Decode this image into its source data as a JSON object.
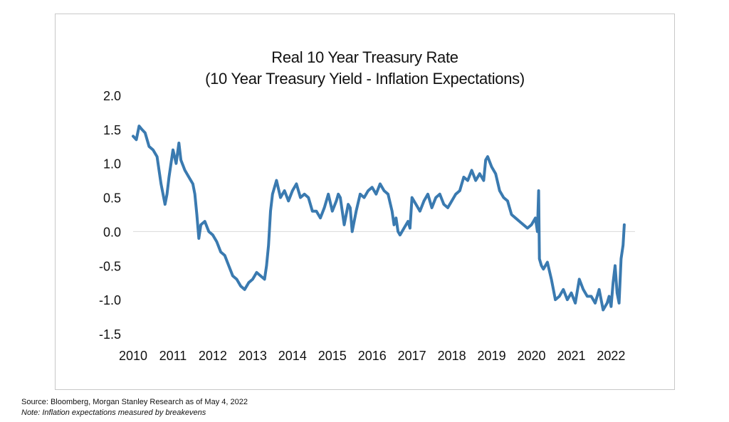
{
  "chart_data": {
    "type": "line",
    "title": "Real 10 Year Treasury Rate",
    "subtitle": "(10 Year Treasury Yield - Inflation Expectations)",
    "xlabel": "",
    "ylabel": "",
    "x_tick_labels": [
      "2010",
      "2011",
      "2012",
      "2013",
      "2014",
      "2015",
      "2016",
      "2017",
      "2018",
      "2019",
      "2020",
      "2021",
      "2022"
    ],
    "y_tick_labels": [
      "2.0",
      "1.5",
      "1.0",
      "0.5",
      "0.0",
      "-0.5",
      "-1.0",
      "-1.5"
    ],
    "y_ticks": [
      2.0,
      1.5,
      1.0,
      0.5,
      0.0,
      -0.5,
      -1.0,
      -1.5
    ],
    "xlim": [
      2010.0,
      2022.6
    ],
    "ylim": [
      -1.5,
      2.0
    ],
    "grid": false,
    "zero_line": true,
    "series_color": "#3a7ab0",
    "series": [
      {
        "x": [
          2010.0,
          2010.08,
          2010.15,
          2010.22,
          2010.3,
          2010.4,
          2010.5,
          2010.6,
          2010.7,
          2010.8,
          2010.85,
          2010.9,
          2011.0,
          2011.08,
          2011.15,
          2011.2,
          2011.3,
          2011.4,
          2011.5,
          2011.55,
          2011.6,
          2011.65,
          2011.7,
          2011.8,
          2011.9,
          2012.0,
          2012.1,
          2012.2,
          2012.3,
          2012.4,
          2012.5,
          2012.6,
          2012.7,
          2012.8,
          2012.9,
          2013.0,
          2013.1,
          2013.2,
          2013.3,
          2013.35,
          2013.4,
          2013.45,
          2013.5,
          2013.55,
          2013.6,
          2013.7,
          2013.8,
          2013.9,
          2014.0,
          2014.1,
          2014.2,
          2014.3,
          2014.4,
          2014.5,
          2014.6,
          2014.7,
          2014.8,
          2014.9,
          2015.0,
          2015.1,
          2015.15,
          2015.2,
          2015.3,
          2015.4,
          2015.45,
          2015.5,
          2015.6,
          2015.7,
          2015.8,
          2015.9,
          2016.0,
          2016.1,
          2016.2,
          2016.3,
          2016.4,
          2016.5,
          2016.55,
          2016.6,
          2016.65,
          2016.7,
          2016.8,
          2016.9,
          2016.95,
          2017.0,
          2017.1,
          2017.2,
          2017.3,
          2017.4,
          2017.5,
          2017.6,
          2017.7,
          2017.8,
          2017.9,
          2018.0,
          2018.1,
          2018.2,
          2018.3,
          2018.4,
          2018.5,
          2018.6,
          2018.7,
          2018.8,
          2018.85,
          2018.9,
          2019.0,
          2019.1,
          2019.2,
          2019.3,
          2019.4,
          2019.5,
          2019.6,
          2019.7,
          2019.8,
          2019.9,
          2020.0,
          2020.1,
          2020.15,
          2020.18,
          2020.2,
          2020.25,
          2020.3,
          2020.4,
          2020.5,
          2020.6,
          2020.7,
          2020.8,
          2020.9,
          2021.0,
          2021.1,
          2021.2,
          2021.3,
          2021.4,
          2021.5,
          2021.6,
          2021.7,
          2021.8,
          2021.9,
          2021.95,
          2022.0,
          2022.05,
          2022.1,
          2022.15,
          2022.2,
          2022.25,
          2022.3,
          2022.33
        ],
        "y": [
          1.4,
          1.35,
          1.55,
          1.5,
          1.45,
          1.25,
          1.2,
          1.1,
          0.7,
          0.4,
          0.55,
          0.8,
          1.2,
          1.0,
          1.3,
          1.05,
          0.9,
          0.8,
          0.7,
          0.55,
          0.25,
          -0.1,
          0.1,
          0.15,
          0.0,
          -0.05,
          -0.15,
          -0.3,
          -0.35,
          -0.5,
          -0.65,
          -0.7,
          -0.8,
          -0.85,
          -0.75,
          -0.7,
          -0.6,
          -0.65,
          -0.7,
          -0.5,
          -0.2,
          0.3,
          0.55,
          0.65,
          0.75,
          0.5,
          0.6,
          0.45,
          0.6,
          0.7,
          0.5,
          0.55,
          0.5,
          0.3,
          0.3,
          0.2,
          0.35,
          0.55,
          0.3,
          0.45,
          0.55,
          0.5,
          0.1,
          0.4,
          0.35,
          0.0,
          0.3,
          0.55,
          0.5,
          0.6,
          0.65,
          0.55,
          0.7,
          0.6,
          0.55,
          0.3,
          0.1,
          0.2,
          0.0,
          -0.05,
          0.05,
          0.15,
          0.05,
          0.5,
          0.4,
          0.3,
          0.45,
          0.55,
          0.35,
          0.5,
          0.55,
          0.4,
          0.35,
          0.45,
          0.55,
          0.6,
          0.8,
          0.75,
          0.9,
          0.75,
          0.85,
          0.75,
          1.05,
          1.1,
          0.95,
          0.85,
          0.6,
          0.5,
          0.45,
          0.25,
          0.2,
          0.15,
          0.1,
          0.05,
          0.1,
          0.2,
          0.0,
          0.6,
          -0.4,
          -0.5,
          -0.55,
          -0.45,
          -0.7,
          -1.0,
          -0.95,
          -0.85,
          -1.0,
          -0.9,
          -1.05,
          -0.7,
          -0.85,
          -0.95,
          -0.95,
          -1.05,
          -0.85,
          -1.15,
          -1.05,
          -0.95,
          -1.1,
          -0.75,
          -0.5,
          -0.9,
          -1.05,
          -0.4,
          -0.2,
          0.1
        ]
      }
    ]
  },
  "footer": {
    "source": "Source: Bloomberg, Morgan Stanley Research as of May 4, 2022",
    "note": "Note: Inflation expectations measured by breakevens"
  }
}
